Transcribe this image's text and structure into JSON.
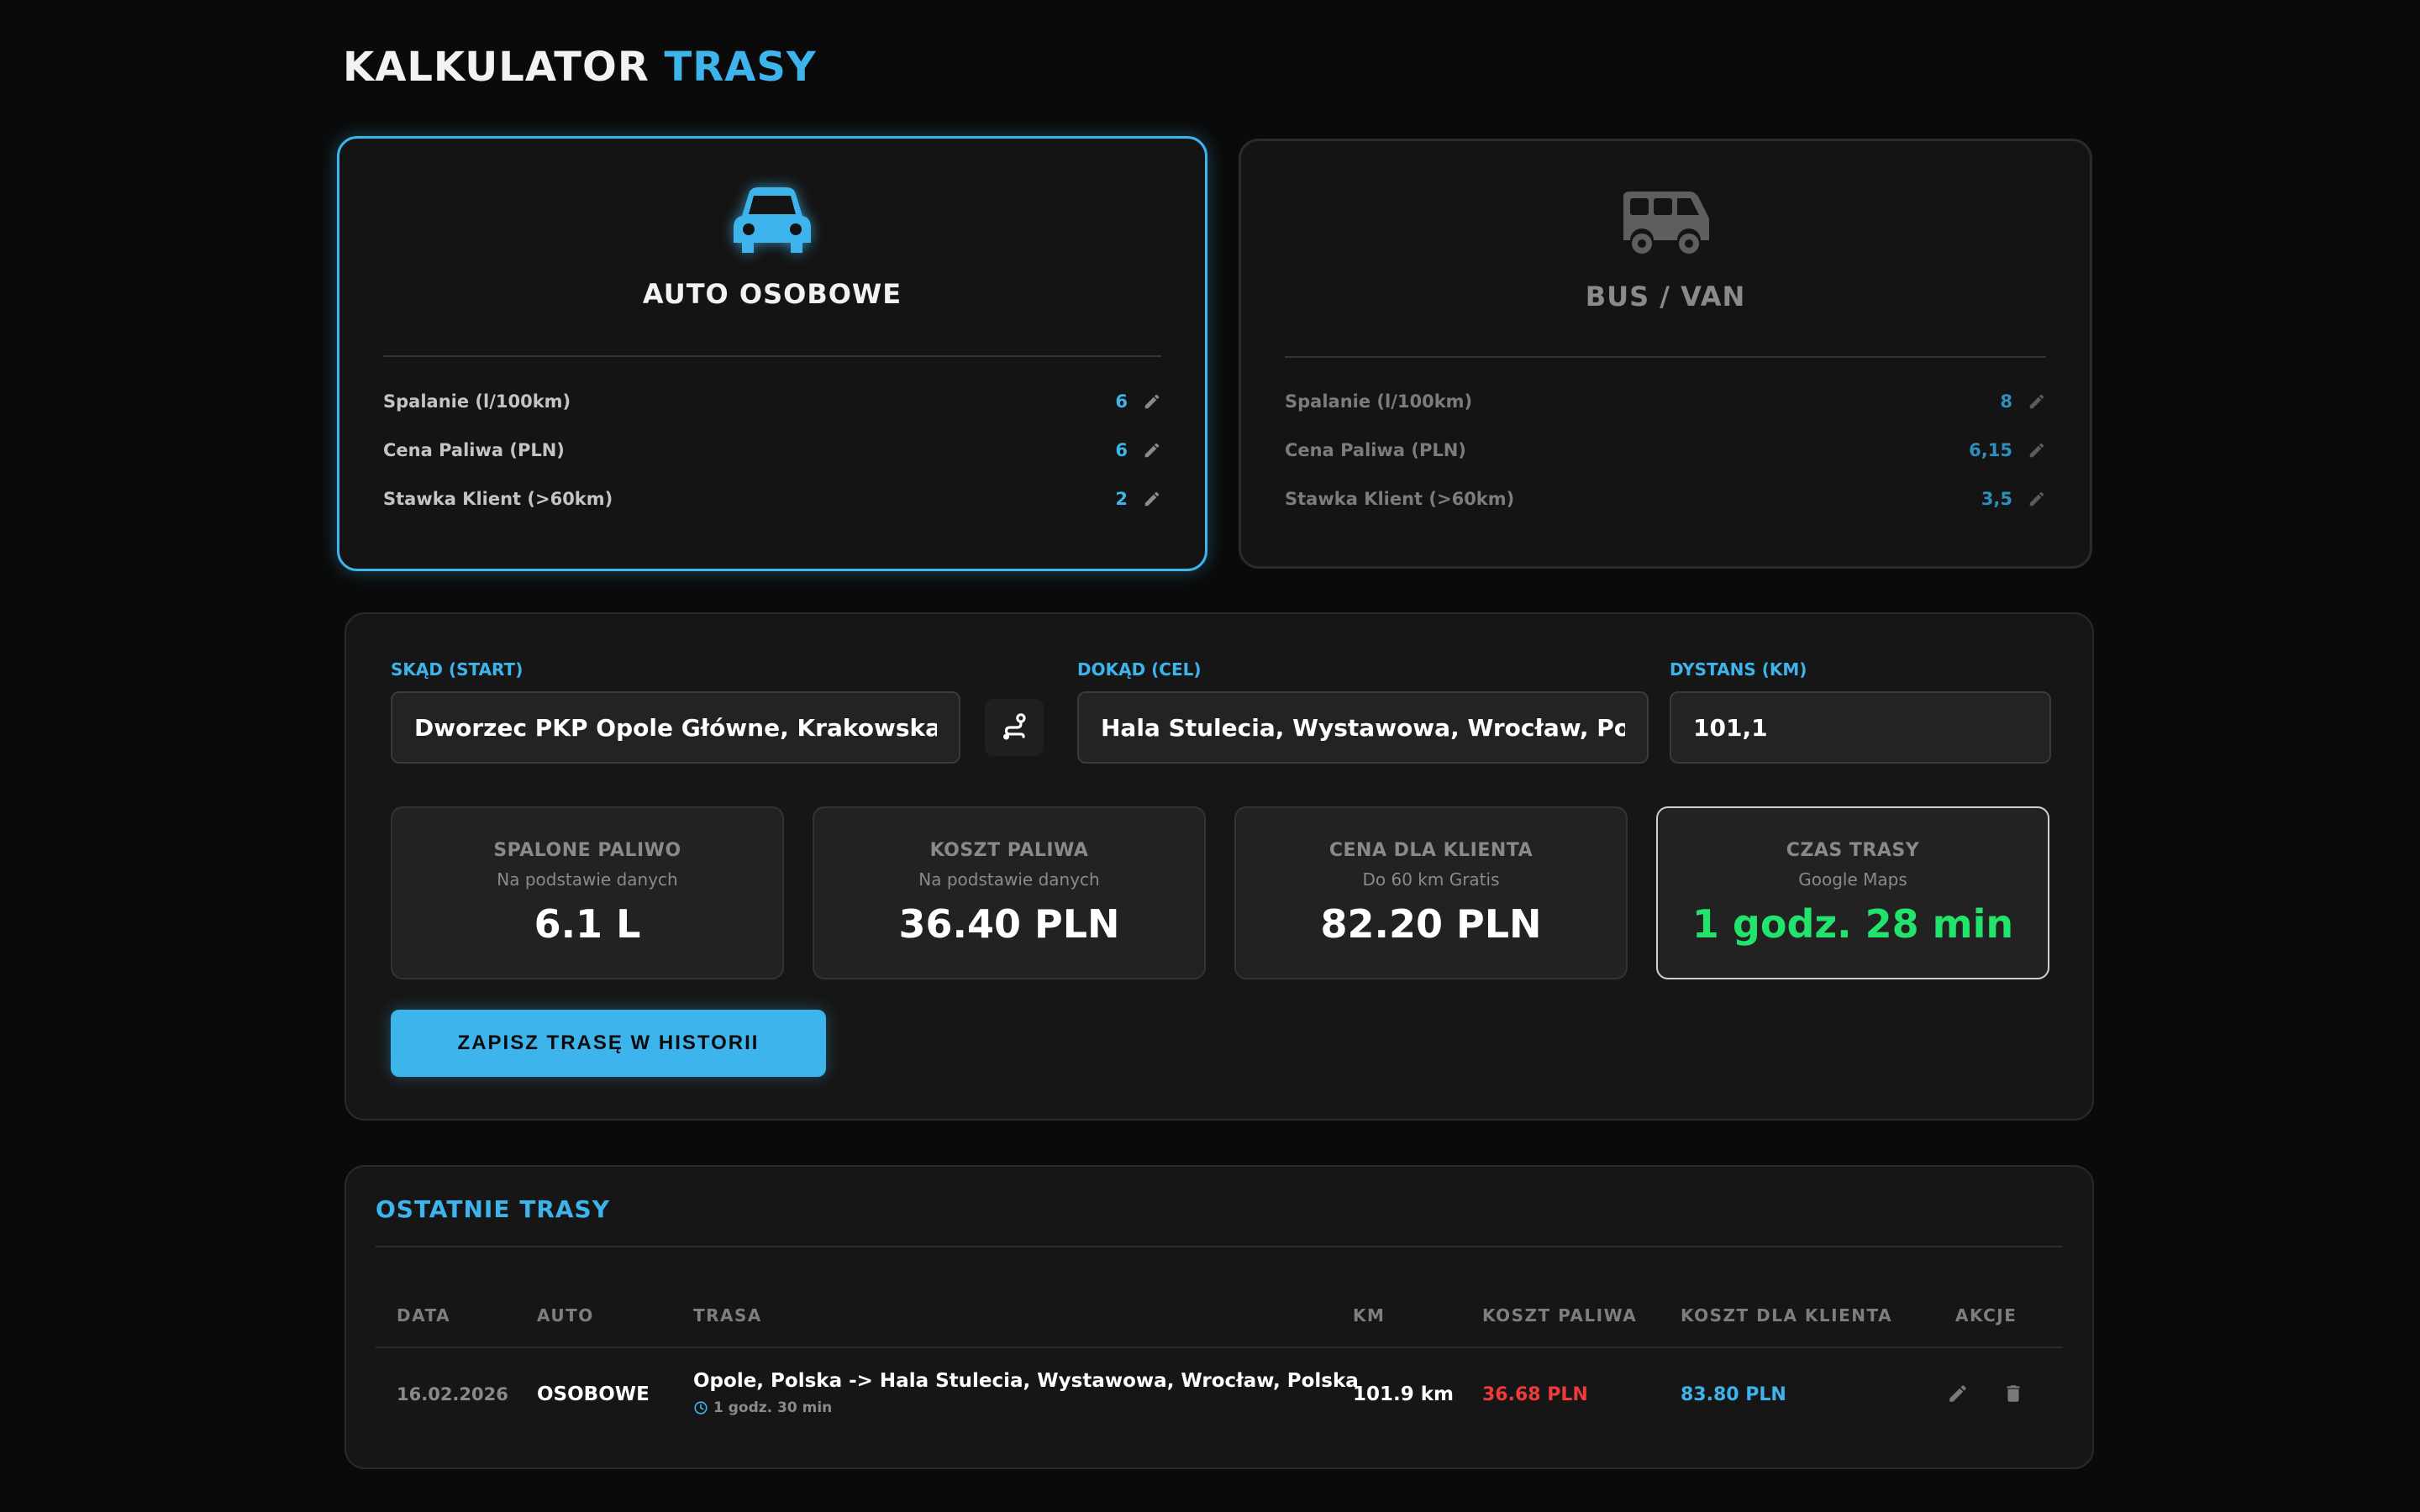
{
  "header": {
    "title_main": "KALKULATOR",
    "title_accent": "TRASY"
  },
  "vehicles": [
    {
      "name": "AUTO OSOBOWE",
      "icon": "car-icon",
      "active": true,
      "specs": [
        {
          "label": "Spalanie (l/100km)",
          "value": "6"
        },
        {
          "label": "Cena Paliwa (PLN)",
          "value": "6"
        },
        {
          "label": "Stawka Klient (>60km)",
          "value": "2"
        }
      ]
    },
    {
      "name": "BUS / VAN",
      "icon": "bus-icon",
      "active": false,
      "specs": [
        {
          "label": "Spalanie (l/100km)",
          "value": "8"
        },
        {
          "label": "Cena Paliwa (PLN)",
          "value": "6,15"
        },
        {
          "label": "Stawka Klient (>60km)",
          "value": "3,5"
        }
      ]
    }
  ],
  "calculator": {
    "start_label": "SKĄD (START)",
    "start_value": "Dworzec PKP Opole Główne, Krakowska, Opole, Polska",
    "destination_label": "DOKĄD (CEL)",
    "destination_value": "Hala Stulecia, Wystawowa, Wrocław, Polska",
    "distance_label": "DYSTANS (KM)",
    "distance_value": "101,1",
    "save_label": "ZAPISZ TRASĘ W HISTORII"
  },
  "results": [
    {
      "title": "SPALONE PALIWO",
      "subtitle": "Na podstawie danych",
      "value": "6.1 L"
    },
    {
      "title": "KOSZT PALIWA",
      "subtitle": "Na podstawie danych",
      "value": "36.40 PLN"
    },
    {
      "title": "CENA DLA KLIENTA",
      "subtitle": "Do 60 km Gratis",
      "value": "82.20 PLN"
    },
    {
      "title": "CZAS TRASY",
      "subtitle": "Google Maps",
      "value": "1 godz. 28 min"
    }
  ],
  "history": {
    "title": "OSTATNIE TRASY",
    "columns": [
      "DATA",
      "AUTO",
      "TRASA",
      "KM",
      "KOSZT PALIWA",
      "KOSZT DLA KLIENTA",
      "AKCJE"
    ],
    "rows": [
      {
        "date": "16.02.2026",
        "vehicle": "OSOBOWE",
        "route": "Opole, Polska -> Hala Stulecia, Wystawowa, Wrocław, Polska",
        "duration": "1 godz. 30 min",
        "km": "101.9 km",
        "fuel_cost": "36.68 PLN",
        "client_cost": "83.80 PLN"
      }
    ]
  },
  "colors": {
    "accent": "#3db5ec",
    "success": "#22e36b",
    "danger": "#ef3b3b",
    "background": "#0a0a0a"
  }
}
